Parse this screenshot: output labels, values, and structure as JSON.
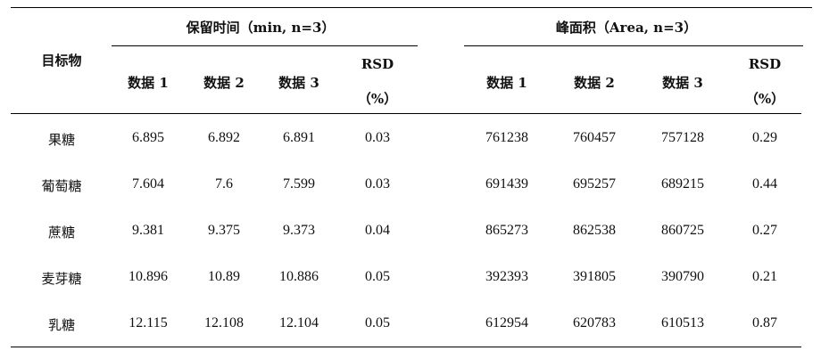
{
  "table": {
    "header": {
      "target_label": "目标物",
      "retention_group": "保留时间（min, n=3）",
      "area_group": "峰面积（Area, n=3）",
      "retention_cols": [
        "数据 1",
        "数据 2",
        "数据 3"
      ],
      "area_cols": [
        "数据 1",
        "数据 2",
        "数据 3"
      ],
      "rsd_label": "RSD",
      "rsd_unit": "（%）"
    },
    "rows": [
      {
        "name": "果糖",
        "rt": [
          "6.895",
          "6.892",
          "6.891"
        ],
        "rt_rsd": "0.03",
        "area": [
          "761238",
          "760457",
          "757128"
        ],
        "area_rsd": "0.29"
      },
      {
        "name": "葡萄糖",
        "rt": [
          "7.604",
          "7.6",
          "7.599"
        ],
        "rt_rsd": "0.03",
        "area": [
          "691439",
          "695257",
          "689215"
        ],
        "area_rsd": "0.44"
      },
      {
        "name": "蔗糖",
        "rt": [
          "9.381",
          "9.375",
          "9.373"
        ],
        "rt_rsd": "0.04",
        "area": [
          "865273",
          "862538",
          "860725"
        ],
        "area_rsd": "0.27"
      },
      {
        "name": "麦芽糖",
        "rt": [
          "10.896",
          "10.89",
          "10.886"
        ],
        "rt_rsd": "0.05",
        "area": [
          "392393",
          "391805",
          "390790"
        ],
        "area_rsd": "0.21"
      },
      {
        "name": "乳糖",
        "rt": [
          "12.115",
          "12.108",
          "12.104"
        ],
        "rt_rsd": "0.05",
        "area": [
          "612954",
          "620783",
          "610513"
        ],
        "area_rsd": "0.87"
      }
    ]
  }
}
